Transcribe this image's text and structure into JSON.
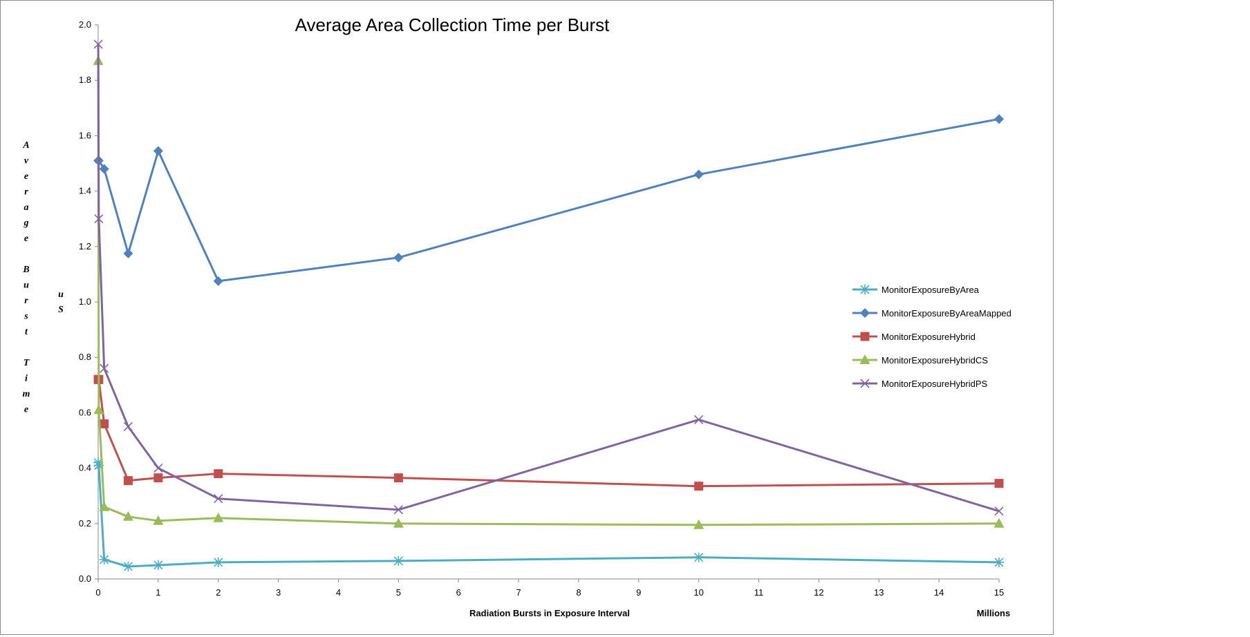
{
  "chart_data": {
    "type": "line",
    "title": "Average Area Collection Time per Burst",
    "xlabel": "Radiation  Bursts in Exposure Interval",
    "x_unit_label": "Millions",
    "ylabel": "Average Burst Time",
    "ylabel_unit": "uS",
    "xlim": [
      0,
      15
    ],
    "ylim": [
      0,
      2.0
    ],
    "x_ticks": [
      "0",
      "1",
      "2",
      "3",
      "4",
      "5",
      "6",
      "7",
      "8",
      "9",
      "10",
      "11",
      "12",
      "13",
      "14",
      "15"
    ],
    "y_ticks": [
      "0.0",
      "0.2",
      "0.4",
      "0.6",
      "0.8",
      "1.0",
      "1.2",
      "1.4",
      "1.6",
      "1.8",
      "2.0"
    ],
    "grid": false,
    "legend_position": "right",
    "x": [
      0.001,
      0.01,
      0.1,
      0.5,
      1,
      2,
      5,
      10,
      15
    ],
    "series": [
      {
        "name": "MonitorExposureByArea",
        "color": "#4bacc6",
        "marker": "asterisk",
        "values": [
          0.42,
          0.41,
          0.07,
          0.045,
          0.05,
          0.06,
          0.065,
          0.078,
          0.06
        ]
      },
      {
        "name": "MonitorExposureByAreaMapped",
        "color": "#4f81bd",
        "marker": "diamond",
        "values": [
          1.51,
          1.51,
          1.48,
          1.175,
          1.545,
          1.075,
          1.16,
          1.46,
          1.66
        ]
      },
      {
        "name": "MonitorExposureHybrid",
        "color": "#c0504d",
        "marker": "square",
        "values": [
          0.72,
          0.72,
          0.56,
          0.355,
          0.365,
          0.38,
          0.365,
          0.335,
          0.345
        ]
      },
      {
        "name": "MonitorExposureHybridCS",
        "color": "#9bbb59",
        "marker": "triangle",
        "values": [
          1.87,
          0.61,
          0.26,
          0.225,
          0.21,
          0.22,
          0.2,
          0.195,
          0.2
        ]
      },
      {
        "name": "MonitorExposureHybridPS",
        "color": "#8064a2",
        "marker": "cross",
        "values": [
          1.93,
          1.3,
          0.76,
          0.55,
          0.4,
          0.29,
          0.25,
          0.575,
          0.245
        ]
      }
    ]
  }
}
